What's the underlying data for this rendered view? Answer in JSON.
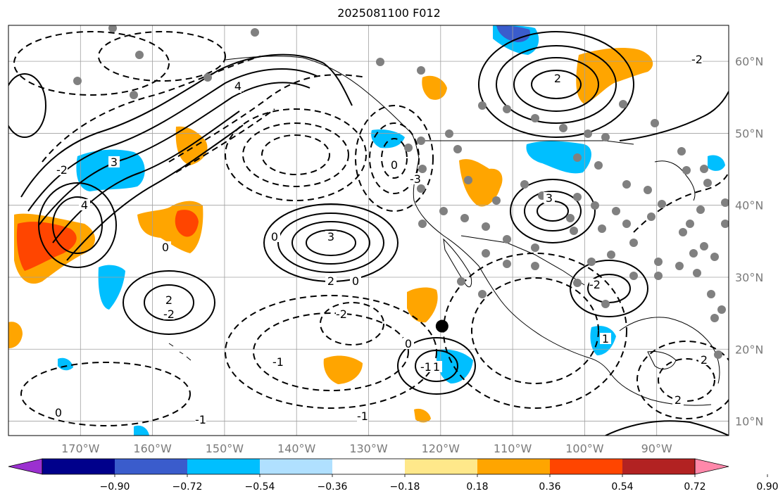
{
  "title": "2025081100 F012",
  "map": {
    "lon_labels": [
      "170°W",
      "160°W",
      "150°W",
      "140°W",
      "130°W",
      "120°W",
      "110°W",
      "100°W",
      "90°W"
    ],
    "lon_values": [
      -170,
      -160,
      -150,
      -140,
      -130,
      -120,
      -110,
      -100,
      -90
    ],
    "lat_labels": [
      "60°N",
      "50°N",
      "40°N",
      "30°N",
      "20°N",
      "10°N"
    ],
    "lat_values": [
      60,
      50,
      40,
      30,
      20,
      10
    ],
    "extent": {
      "lon_min": -180,
      "lon_max": -80,
      "lat_min": 8,
      "lat_max": 65
    },
    "gridlines": true,
    "storm_marker": {
      "lon": -119.8,
      "lat": 23.2
    },
    "colors": {
      "land_outline": "#000000",
      "grid": "#a0a0a0",
      "station_dot": "#808080"
    }
  },
  "contour_labels": [
    "4",
    "4",
    "3",
    "3",
    "2",
    "2",
    "0",
    "0",
    "-1",
    "-1",
    "-2",
    "-2",
    "-3",
    "1",
    "-1",
    "0",
    "2",
    "-2",
    "0",
    "3",
    "2",
    "1",
    "-1",
    "0",
    "-2",
    "0",
    "2",
    "4",
    "-2"
  ],
  "colorbar": {
    "tick_labels": [
      "−0.90",
      "−0.72",
      "−0.54",
      "−0.36",
      "−0.18",
      "0.18",
      "0.36",
      "0.54",
      "0.72",
      "0.90"
    ],
    "colors": [
      "#9b30d0",
      "#00008b",
      "#3a5ccc",
      "#00bfff",
      "#b0e0ff",
      "#ffffff",
      "#ffe88a",
      "#ffa500",
      "#ff4500",
      "#b22222",
      "#ff88aa"
    ]
  }
}
